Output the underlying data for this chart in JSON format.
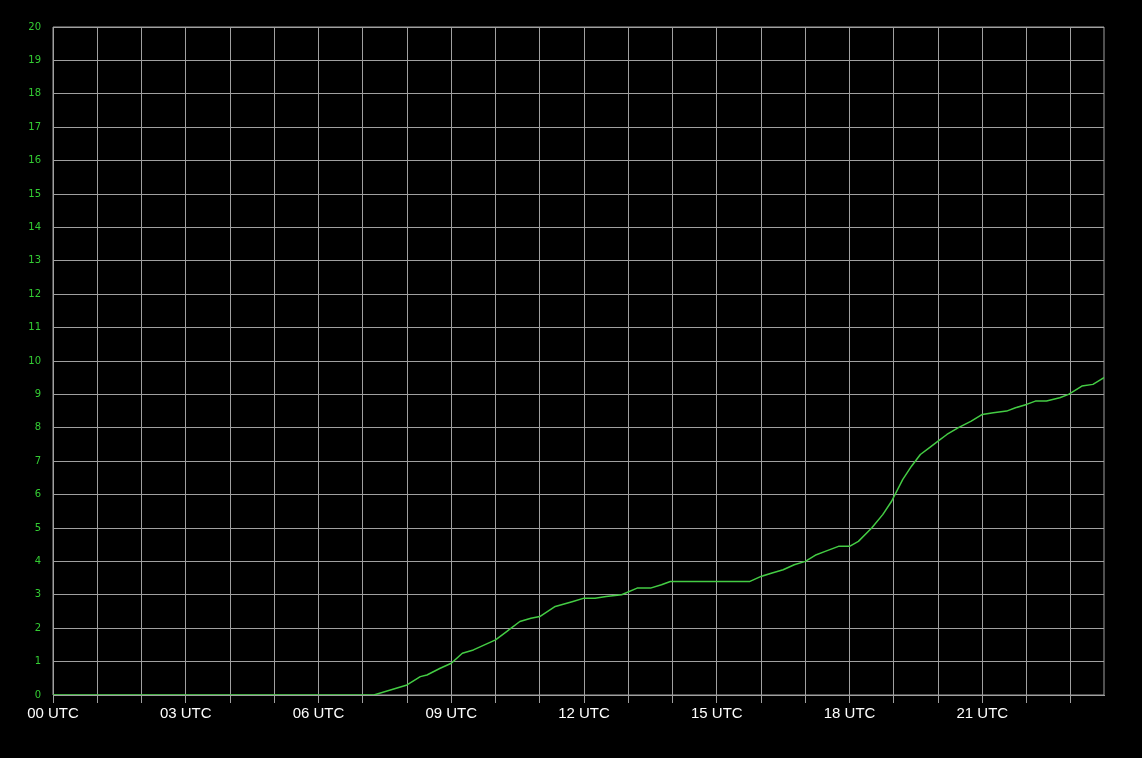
{
  "chart_data": {
    "type": "line",
    "x": [
      0,
      7.25,
      8.0,
      8.3,
      8.45,
      8.75,
      9.0,
      9.25,
      9.5,
      10.0,
      10.25,
      10.55,
      10.8,
      11.0,
      11.35,
      11.75,
      12.0,
      12.25,
      12.5,
      12.85,
      13.2,
      13.5,
      13.75,
      13.95,
      15.75,
      16.0,
      16.25,
      16.5,
      16.75,
      17.0,
      17.25,
      17.45,
      17.75,
      18.0,
      18.2,
      18.5,
      18.75,
      18.95,
      19.2,
      19.4,
      19.6,
      19.8,
      20.0,
      20.2,
      20.45,
      20.75,
      21.0,
      21.25,
      21.55,
      21.75,
      22.0,
      22.2,
      22.45,
      22.75,
      22.95,
      23.25,
      23.5,
      23.75
    ],
    "series": [
      {
        "color": "#44cc44",
        "values": [
          0,
          0,
          0.3,
          0.55,
          0.6,
          0.8,
          0.95,
          1.25,
          1.35,
          1.65,
          1.9,
          2.2,
          2.3,
          2.35,
          2.65,
          2.8,
          2.9,
          2.9,
          2.95,
          3.0,
          3.2,
          3.2,
          3.3,
          3.4,
          3.4,
          3.55,
          3.65,
          3.75,
          3.9,
          4.0,
          4.2,
          4.3,
          4.45,
          4.45,
          4.6,
          5.0,
          5.4,
          5.8,
          6.45,
          6.85,
          7.2,
          7.4,
          7.6,
          7.8,
          8.0,
          8.2,
          8.4,
          8.45,
          8.5,
          8.6,
          8.7,
          8.8,
          8.8,
          8.9,
          9.0,
          9.25,
          9.3,
          9.5
        ]
      }
    ],
    "xlim": [
      0,
      23.75
    ],
    "xticks": [
      {
        "value": 0,
        "label": "00 UTC"
      },
      {
        "value": 1,
        "label": null
      },
      {
        "value": 2,
        "label": null
      },
      {
        "value": 3,
        "label": "03 UTC"
      },
      {
        "value": 4,
        "label": null
      },
      {
        "value": 5,
        "label": null
      },
      {
        "value": 6,
        "label": "06 UTC"
      },
      {
        "value": 7,
        "label": null
      },
      {
        "value": 8,
        "label": null
      },
      {
        "value": 9,
        "label": "09 UTC"
      },
      {
        "value": 10,
        "label": null
      },
      {
        "value": 11,
        "label": null
      },
      {
        "value": 12,
        "label": "12 UTC"
      },
      {
        "value": 13,
        "label": null
      },
      {
        "value": 14,
        "label": null
      },
      {
        "value": 15,
        "label": "15 UTC"
      },
      {
        "value": 16,
        "label": null
      },
      {
        "value": 17,
        "label": null
      },
      {
        "value": 18,
        "label": "18 UTC"
      },
      {
        "value": 19,
        "label": null
      },
      {
        "value": 20,
        "label": null
      },
      {
        "value": 21,
        "label": "21 UTC"
      },
      {
        "value": 22,
        "label": null
      },
      {
        "value": 23,
        "label": null
      }
    ],
    "ylim": [
      0,
      20
    ],
    "yticks": [
      0,
      1,
      2,
      3,
      4,
      5,
      6,
      7,
      8,
      9,
      10,
      11,
      12,
      13,
      14,
      15,
      16,
      17,
      18,
      19,
      20
    ],
    "grid": true,
    "legend": false
  }
}
